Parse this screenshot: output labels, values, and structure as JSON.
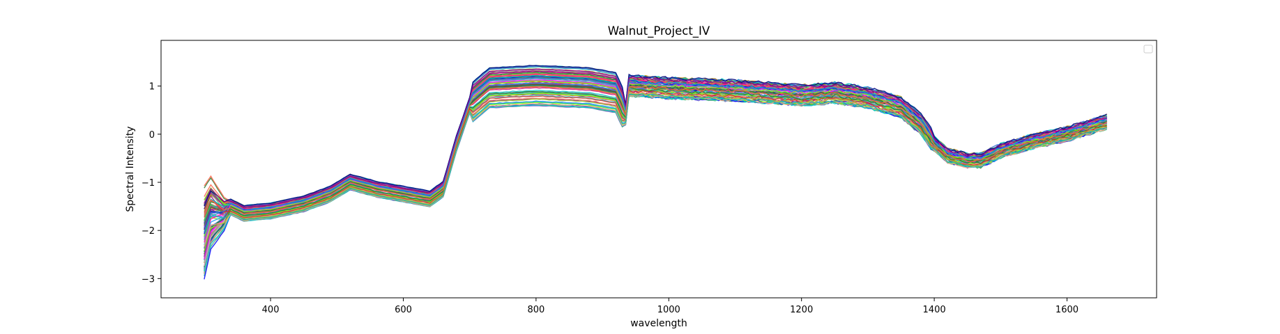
{
  "chart_data": {
    "type": "line",
    "title": "Walnut_Project_IV",
    "xlabel": "wavelength",
    "ylabel": "Spectral Intensity",
    "xlim": [
      235,
      1735
    ],
    "ylim": [
      -3.4,
      1.95
    ],
    "xticks": [
      400,
      600,
      800,
      1000,
      1200,
      1400,
      1600
    ],
    "yticks": [
      -3,
      -2,
      -1,
      0,
      1
    ],
    "ytick_labels": [
      "−3",
      "−2",
      "−1",
      "0",
      "1"
    ],
    "grid": false,
    "legend": "top-right (empty)",
    "x_range": [
      300,
      1660
    ],
    "series_count": 84,
    "profile": {
      "x": [
        300,
        310,
        330,
        360,
        400,
        450,
        490,
        520,
        560,
        600,
        640,
        660,
        680,
        700,
        730,
        800,
        880,
        920,
        935,
        940,
        1000,
        1100,
        1200,
        1250,
        1300,
        1350,
        1380,
        1400,
        1420,
        1450,
        1470,
        1500,
        1550,
        1600,
        1660
      ],
      "mean": [
        -1.2,
        -1.0,
        -1.45,
        -1.65,
        -1.6,
        -1.45,
        -1.25,
        -1.0,
        -1.15,
        -1.25,
        -1.35,
        -1.15,
        -0.2,
        0.6,
        0.95,
        1.0,
        0.95,
        0.85,
        0.4,
        1.0,
        0.95,
        0.9,
        0.8,
        0.85,
        0.75,
        0.55,
        0.2,
        -0.2,
        -0.45,
        -0.55,
        -0.55,
        -0.35,
        -0.15,
        0.0,
        0.25
      ]
    },
    "series_colors": [
      "#ff00ff",
      "#0000ff",
      "#2e7d32",
      "#d32f2f",
      "#7cfc00",
      "#00bfbf",
      "#ffa07a",
      "#8b008b",
      "#9acd32",
      "#4169e1",
      "#20b2aa",
      "#ff6347",
      "#6a5acd",
      "#228b22",
      "#b8860b",
      "#00ced1",
      "#c71585",
      "#556b2f",
      "#1e90ff",
      "#ff1493",
      "#3cb371",
      "#8fbc8f",
      "#dda0dd",
      "#000080"
    ]
  }
}
